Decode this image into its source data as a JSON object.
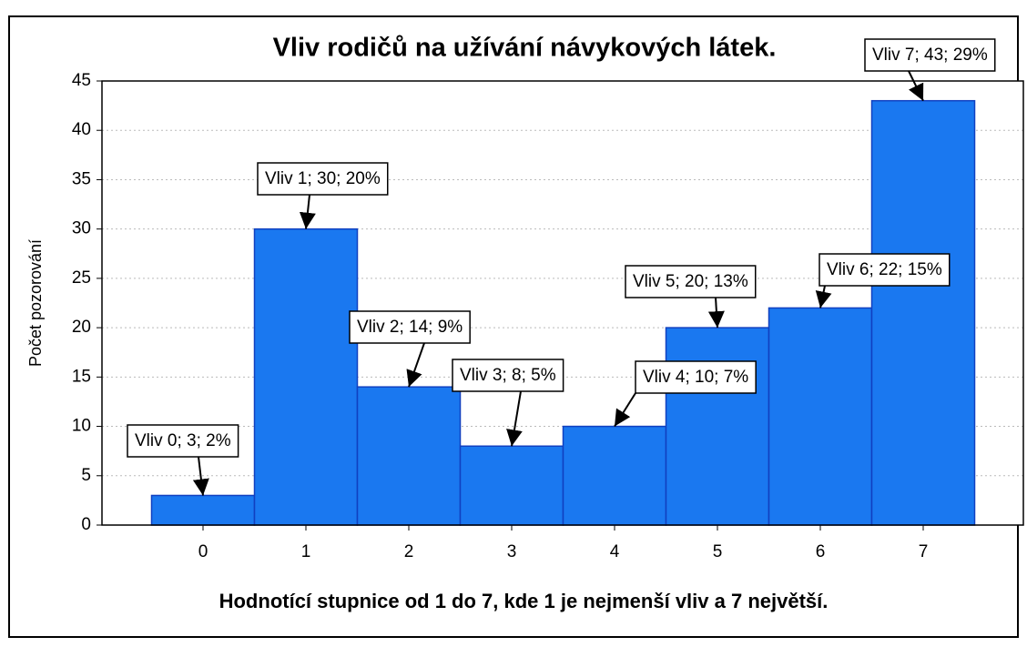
{
  "chart_data": {
    "type": "bar",
    "title": "Vliv rodičů na užívání návykových látek.",
    "x_label": "Hodnotící stupnice od 1 do 7, kde 1 je nejmenší vliv a 7 největší.",
    "y_label": "Počet pozorování",
    "categories": [
      "0",
      "1",
      "2",
      "3",
      "4",
      "5",
      "6",
      "7"
    ],
    "values": [
      3,
      30,
      14,
      8,
      10,
      20,
      22,
      43
    ],
    "value_labels": [
      "Vliv 0; 3; 2%",
      "Vliv 1; 30; 20%",
      "Vliv 2; 14; 9%",
      "Vliv 3; 8; 5%",
      "Vliv 4; 10; 7%",
      "Vliv 5; 20; 13%",
      "Vliv 6; 22; 15%",
      "Vliv 7; 43; 29%"
    ],
    "color": "#1a78f0",
    "ylim": [
      0,
      45
    ],
    "yticks": [
      0,
      5,
      10,
      15,
      20,
      25,
      30,
      35,
      40,
      45
    ],
    "grid": true
  }
}
